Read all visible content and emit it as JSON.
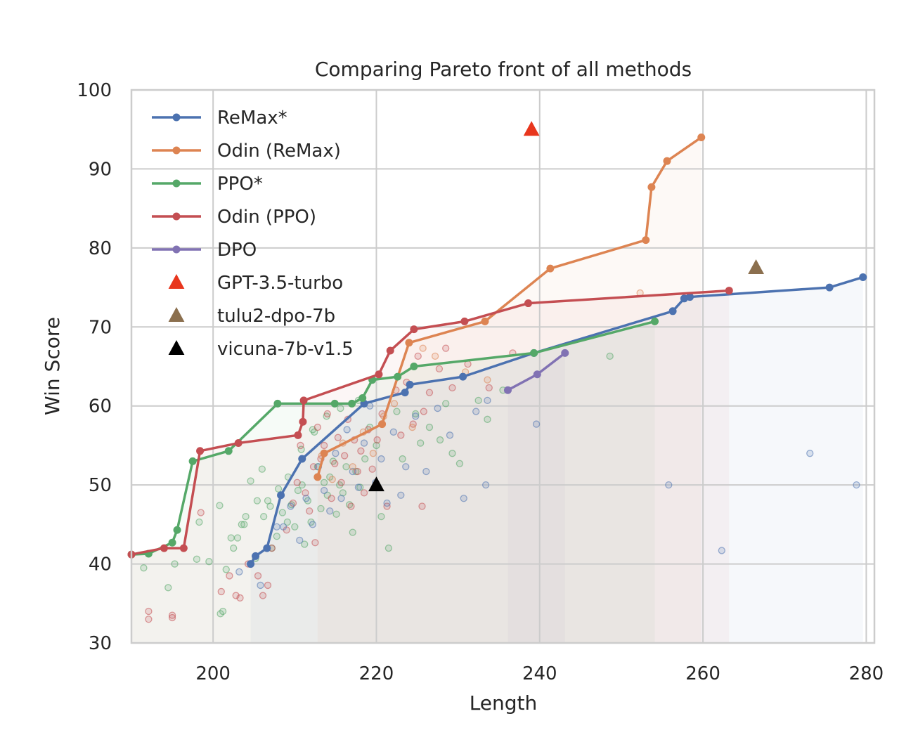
{
  "chart_data": {
    "type": "line",
    "title": "Comparing Pareto front of all methods",
    "xlabel": "Length",
    "ylabel": "Win Score",
    "xlim": [
      190,
      281
    ],
    "ylim": [
      30,
      100
    ],
    "x_ticks": [
      "200",
      "220",
      "240",
      "260",
      "280"
    ],
    "y_ticks": [
      "30",
      "40",
      "50",
      "60",
      "70",
      "80",
      "90",
      "100"
    ],
    "x_tick_values": [
      200,
      220,
      240,
      260,
      280
    ],
    "y_tick_values": [
      30,
      40,
      50,
      60,
      70,
      80,
      90,
      100
    ],
    "grid": true,
    "legend_position": "upper-left",
    "series": [
      {
        "name": "ReMax*",
        "color": "#4c72b0",
        "x": [
          204.6,
          205.2,
          206.6,
          208.3,
          210.9,
          218.5,
          223.5,
          224.1,
          230.6,
          239.3,
          256.3,
          257.7,
          258.4,
          275.5,
          279.6
        ],
        "y": [
          40.0,
          41.0,
          42.0,
          48.7,
          53.3,
          60.3,
          61.7,
          62.7,
          63.7,
          66.7,
          72.0,
          73.6,
          73.8,
          75.0,
          76.3
        ]
      },
      {
        "name": "Odin (ReMax)",
        "color": "#dd8452",
        "x": [
          212.8,
          213.6,
          220.7,
          224.0,
          233.3,
          241.3,
          253.0,
          253.7,
          255.6,
          259.8
        ],
        "y": [
          51.0,
          54.0,
          57.7,
          68.0,
          70.7,
          77.4,
          81.0,
          87.7,
          91.0,
          94.0
        ]
      },
      {
        "name": "PPO*",
        "color": "#55a868",
        "x": [
          190.0,
          192.1,
          195.0,
          195.6,
          197.5,
          201.9,
          207.9,
          214.9,
          217.0,
          218.3,
          219.5,
          222.6,
          224.6,
          239.3,
          254.1
        ],
        "y": [
          41.2,
          41.3,
          42.7,
          44.3,
          53.0,
          54.3,
          60.3,
          60.3,
          60.3,
          61.0,
          63.3,
          63.7,
          65.0,
          66.7,
          70.7
        ]
      },
      {
        "name": "Odin (PPO)",
        "color": "#c44e52",
        "x": [
          190.0,
          194.0,
          196.4,
          198.4,
          203.1,
          210.4,
          211.0,
          211.1,
          220.3,
          221.7,
          224.6,
          230.8,
          238.6,
          263.2
        ],
        "y": [
          41.2,
          42.0,
          42.0,
          54.3,
          55.3,
          56.3,
          58.0,
          60.7,
          64.0,
          67.0,
          69.7,
          70.7,
          73.0,
          74.6
        ]
      },
      {
        "name": "DPO",
        "color": "#8172b3",
        "x": [
          236.1,
          239.7,
          243.1
        ],
        "y": [
          62.0,
          64.0,
          66.7
        ]
      }
    ],
    "markers": [
      {
        "name": "GPT-3.5-turbo",
        "color": "#e8361d",
        "x": 239.0,
        "y": 95.0
      },
      {
        "name": "tulu2-dpo-7b",
        "color": "#8b6f4e",
        "x": 266.5,
        "y": 77.5
      },
      {
        "name": "vicuna-7b-v1.5",
        "color": "#000000",
        "x": 220.0,
        "y": 50.0
      }
    ],
    "scatter": [
      {
        "color": "#55a868",
        "x": [
          191.5,
          194.5,
          195.3,
          198.0,
          198.3,
          200.8,
          201.2,
          201.6,
          202.5,
          203.0,
          203.5,
          204.0,
          204.6,
          205.4,
          206.0,
          206.2,
          206.7,
          207.2,
          207.8,
          208.0,
          208.5,
          209.2,
          209.6,
          210.0,
          210.4,
          210.8,
          211.2,
          211.6,
          212.0,
          212.4,
          212.8,
          213.2,
          213.6,
          214.0,
          214.3,
          214.7,
          215.1,
          215.5,
          215.9,
          216.3,
          216.7,
          217.1,
          217.5,
          218.0,
          218.6,
          219.2,
          220.0,
          220.6,
          221.5,
          222.5,
          223.2,
          224.8,
          225.4,
          226.5,
          227.8,
          228.5,
          229.3,
          230.2,
          232.5,
          233.6,
          235.5,
          248.6,
          212.2,
          213.9,
          215.6,
          217.8,
          210.9,
          209.1,
          207.0,
          205.2,
          203.8,
          202.2,
          200.9,
          199.5
        ],
        "y": [
          39.5,
          37.0,
          40.0,
          40.6,
          45.3,
          47.4,
          34.0,
          39.3,
          42.0,
          43.3,
          45.0,
          46.0,
          50.5,
          48.0,
          52.0,
          46.0,
          48.0,
          42.0,
          43.5,
          49.5,
          46.5,
          51.0,
          47.5,
          44.7,
          49.3,
          54.5,
          42.5,
          48.0,
          45.3,
          56.7,
          52.3,
          47.0,
          50.3,
          48.7,
          51.0,
          53.0,
          46.3,
          50.0,
          49.0,
          52.3,
          47.5,
          44.0,
          51.7,
          49.7,
          53.3,
          57.3,
          55.0,
          46.0,
          42.0,
          59.3,
          53.3,
          59.0,
          55.3,
          57.3,
          55.7,
          60.3,
          54.0,
          52.7,
          60.7,
          58.3,
          62.0,
          66.3,
          57.0,
          58.7,
          59.7,
          60.7,
          50.0,
          45.3,
          47.3,
          40.7,
          45.0,
          43.3,
          33.7,
          40.3
        ]
      },
      {
        "color": "#c44e52",
        "x": [
          192.1,
          192.1,
          195.0,
          195.0,
          198.5,
          201.0,
          202.0,
          202.8,
          203.3,
          204.3,
          205.5,
          206.1,
          206.7,
          207.2,
          209.0,
          209.8,
          210.3,
          210.7,
          211.3,
          211.8,
          212.3,
          212.8,
          213.2,
          213.6,
          214.0,
          214.5,
          214.9,
          215.3,
          215.7,
          216.1,
          216.5,
          216.9,
          217.3,
          217.7,
          218.1,
          218.5,
          219.0,
          219.5,
          220.1,
          220.7,
          221.3,
          222.4,
          223.0,
          223.7,
          224.5,
          225.1,
          225.8,
          226.5,
          227.7,
          228.5,
          229.3,
          231.2,
          233.8,
          236.7,
          225.6,
          212.5
        ],
        "y": [
          34.0,
          33.0,
          33.5,
          33.2,
          46.5,
          36.5,
          38.5,
          36.0,
          35.7,
          40.0,
          38.5,
          36.0,
          37.3,
          42.0,
          44.3,
          47.7,
          50.3,
          55.0,
          49.0,
          46.7,
          52.3,
          57.3,
          53.3,
          55.0,
          59.0,
          48.3,
          52.7,
          56.0,
          50.3,
          53.7,
          58.3,
          47.3,
          55.7,
          51.7,
          54.3,
          49.0,
          57.0,
          52.0,
          55.7,
          59.0,
          47.3,
          62.0,
          56.3,
          63.0,
          57.7,
          66.3,
          59.3,
          61.7,
          64.7,
          67.3,
          62.3,
          65.3,
          62.3,
          66.7,
          47.3,
          42.7
        ]
      },
      {
        "color": "#4c72b0",
        "x": [
          203.2,
          205.8,
          207.8,
          208.6,
          209.5,
          210.6,
          211.4,
          212.2,
          212.9,
          213.6,
          214.3,
          215.0,
          215.7,
          216.4,
          217.1,
          217.8,
          218.5,
          219.2,
          219.9,
          220.6,
          221.3,
          222.1,
          223.0,
          223.6,
          224.8,
          226.1,
          227.5,
          229.0,
          230.7,
          232.2,
          233.4,
          233.6,
          239.6,
          255.8,
          262.3,
          273.1,
          278.8
        ],
        "y": [
          39.0,
          37.3,
          44.7,
          44.7,
          47.3,
          43.0,
          48.3,
          45.0,
          52.3,
          49.3,
          46.7,
          54.0,
          48.3,
          57.0,
          51.7,
          49.7,
          55.3,
          60.0,
          50.3,
          53.3,
          47.7,
          56.7,
          48.7,
          52.3,
          58.7,
          51.7,
          59.7,
          56.3,
          48.3,
          59.3,
          50.0,
          60.7,
          57.7,
          50.0,
          41.7,
          54.0,
          50.0
        ]
      },
      {
        "color": "#dd8452",
        "x": [
          213.3,
          214.6,
          215.9,
          217.1,
          218.4,
          219.6,
          220.9,
          222.2,
          224.4,
          225.7,
          227.2,
          230.9,
          233.6,
          252.3
        ],
        "y": [
          53.7,
          50.7,
          55.3,
          52.3,
          56.7,
          54.0,
          58.7,
          60.3,
          57.3,
          67.3,
          66.3,
          64.3,
          63.3,
          74.3
        ]
      }
    ]
  }
}
